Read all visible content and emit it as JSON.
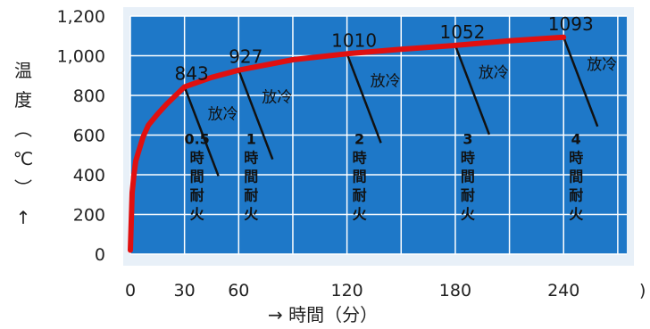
{
  "chart_data": {
    "type": "line",
    "xlabel": "→ 時間（分）",
    "ylabel": [
      "温",
      "度",
      "︵",
      "℃",
      "︶",
      "↑"
    ],
    "x_ticks": [
      0,
      30,
      60,
      120,
      180,
      240
    ],
    "x_tick_labels": [
      "0",
      "30",
      "60",
      "120",
      "180",
      "240"
    ],
    "x_axis_end_mark": ")",
    "y_ticks": [
      0,
      200,
      400,
      600,
      800,
      1000,
      1200
    ],
    "y_tick_labels": [
      "0",
      "200",
      "400",
      "600",
      "800",
      "1,000",
      "1,200"
    ],
    "xlim": [
      0,
      275
    ],
    "ylim": [
      0,
      1200
    ],
    "grid": true,
    "plot_background": "#1e78c8",
    "grid_color": "#ffffff",
    "panel_color": "#e8f0f8",
    "curve_color": "#e01010",
    "x": [
      0,
      1,
      2,
      3,
      5,
      7,
      10,
      15,
      20,
      30,
      45,
      60,
      90,
      120,
      150,
      180,
      210,
      240
    ],
    "y": [
      20,
      310,
      400,
      470,
      530,
      590,
      650,
      705,
      755,
      843,
      891,
      927,
      980,
      1010,
      1033,
      1052,
      1075,
      1093
    ],
    "annotations": [
      {
        "x": 30,
        "y": 843,
        "value_label": "843",
        "cooling": "放冷",
        "rating": [
          "0.5",
          "時",
          "間",
          "耐",
          "火"
        ]
      },
      {
        "x": 60,
        "y": 927,
        "value_label": "927",
        "cooling": "放冷",
        "rating": [
          "1",
          "時",
          "間",
          "耐",
          "火"
        ]
      },
      {
        "x": 120,
        "y": 1010,
        "value_label": "1010",
        "cooling": "放冷",
        "rating": [
          "2",
          "時",
          "間",
          "耐",
          "火"
        ]
      },
      {
        "x": 180,
        "y": 1052,
        "value_label": "1052",
        "cooling": "放冷",
        "rating": [
          "3",
          "時",
          "間",
          "耐",
          "火"
        ]
      },
      {
        "x": 240,
        "y": 1093,
        "value_label": "1093",
        "cooling": "放冷",
        "rating": [
          "4",
          "時",
          "間",
          "耐",
          "火"
        ]
      }
    ]
  }
}
